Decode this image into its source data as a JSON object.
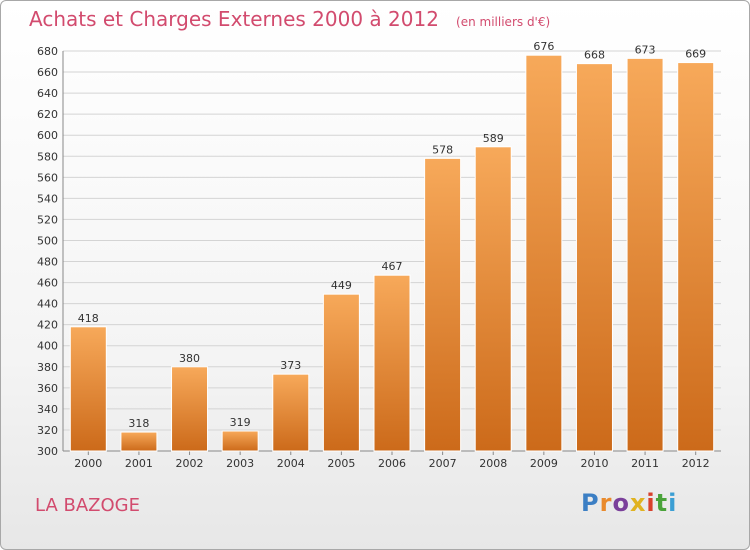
{
  "header": {
    "title": "Achats et Charges Externes 2000 à 2012",
    "subtitle": "(en milliers d'€)"
  },
  "location": {
    "name": "LA BAZOGE"
  },
  "brand": {
    "logo_text": "Proxiti"
  },
  "colors": {
    "bar_top": "#f7a95a",
    "bar_bottom": "#cc6a1a",
    "grid": "#d4d4d4",
    "title": "#d24b6e"
  },
  "chart_data": {
    "type": "bar",
    "title": "Achats et Charges Externes 2000 à 2012",
    "subtitle": "(en milliers d'€)",
    "categories": [
      "2000",
      "2001",
      "2002",
      "2003",
      "2004",
      "2005",
      "2006",
      "2007",
      "2008",
      "2009",
      "2010",
      "2011",
      "2012"
    ],
    "values": [
      418,
      318,
      380,
      319,
      373,
      449,
      467,
      578,
      589,
      676,
      668,
      673,
      669
    ],
    "ylim": [
      300,
      680
    ],
    "yticks": [
      300,
      320,
      340,
      360,
      380,
      400,
      420,
      440,
      460,
      480,
      500,
      520,
      540,
      560,
      580,
      600,
      620,
      640,
      660,
      680
    ],
    "grid": true,
    "data_labels": true
  }
}
